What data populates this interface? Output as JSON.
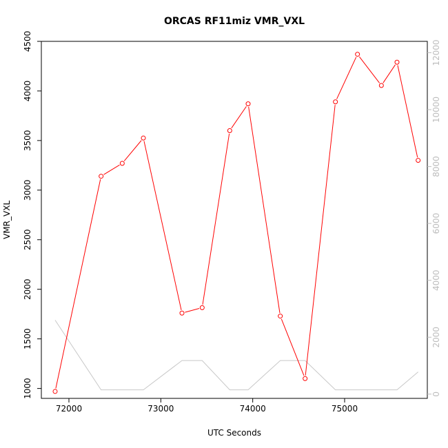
{
  "chart_data": {
    "type": "line",
    "title": "ORCAS RF11miz VMR_VXL",
    "xlabel": "UTC Seconds",
    "ylabel": "VMR_VXL",
    "xlim": [
      71700,
      75900
    ],
    "ylim": [
      900,
      4500
    ],
    "y2lim": [
      -150,
      12400
    ],
    "x_ticks": [
      "72000",
      "73000",
      "74000",
      "75000"
    ],
    "y_ticks": [
      "1000",
      "1500",
      "2000",
      "2500",
      "3000",
      "3500",
      "4000",
      "4500"
    ],
    "y2_ticks": [
      "0",
      "2000",
      "4000",
      "6000",
      "8000",
      "10000",
      "12000"
    ],
    "grid": false,
    "series": [
      {
        "axis": "left",
        "color": "#ff0000",
        "marker": "open-circle",
        "points": [
          [
            71850,
            970
          ],
          [
            72350,
            3140
          ],
          [
            72580,
            3270
          ],
          [
            72810,
            3525
          ],
          [
            73230,
            1760
          ],
          [
            73450,
            1815
          ],
          [
            73750,
            3600
          ],
          [
            73950,
            3870
          ],
          [
            74300,
            1730
          ],
          [
            74570,
            1100
          ],
          [
            74900,
            3890
          ],
          [
            75140,
            4370
          ],
          [
            75400,
            4055
          ],
          [
            75570,
            4290
          ],
          [
            75800,
            3300
          ]
        ]
      },
      {
        "axis": "right",
        "color": "#c8c8c8",
        "marker": "none",
        "points": [
          [
            71850,
            2600
          ],
          [
            72350,
            150
          ],
          [
            72580,
            150
          ],
          [
            72810,
            150
          ],
          [
            73230,
            1180
          ],
          [
            73450,
            1180
          ],
          [
            73750,
            150
          ],
          [
            73950,
            150
          ],
          [
            74300,
            1180
          ],
          [
            74570,
            1180
          ],
          [
            74900,
            150
          ],
          [
            75140,
            150
          ],
          [
            75400,
            150
          ],
          [
            75570,
            150
          ],
          [
            75800,
            780
          ]
        ]
      }
    ]
  }
}
